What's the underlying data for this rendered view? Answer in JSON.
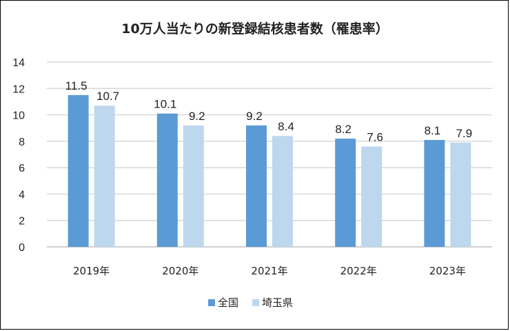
{
  "chart_data": {
    "type": "bar",
    "title": "10万人当たりの新登録結核患者数（罹患率）",
    "categories": [
      "2019年",
      "2020年",
      "2021年",
      "2022年",
      "2023年"
    ],
    "series": [
      {
        "name": "全国",
        "values": [
          11.5,
          10.1,
          9.2,
          8.2,
          8.1
        ],
        "color": "#5b9bd5"
      },
      {
        "name": "埼玉県",
        "values": [
          10.7,
          9.2,
          8.4,
          7.6,
          7.9
        ],
        "color": "#bdd7ee"
      }
    ],
    "yticks": [
      0,
      2,
      4,
      6,
      8,
      10,
      12,
      14
    ],
    "ylim": [
      0,
      14
    ],
    "grid": true,
    "legend_position": "bottom",
    "data_labels": true,
    "xlabel": "",
    "ylabel": ""
  }
}
